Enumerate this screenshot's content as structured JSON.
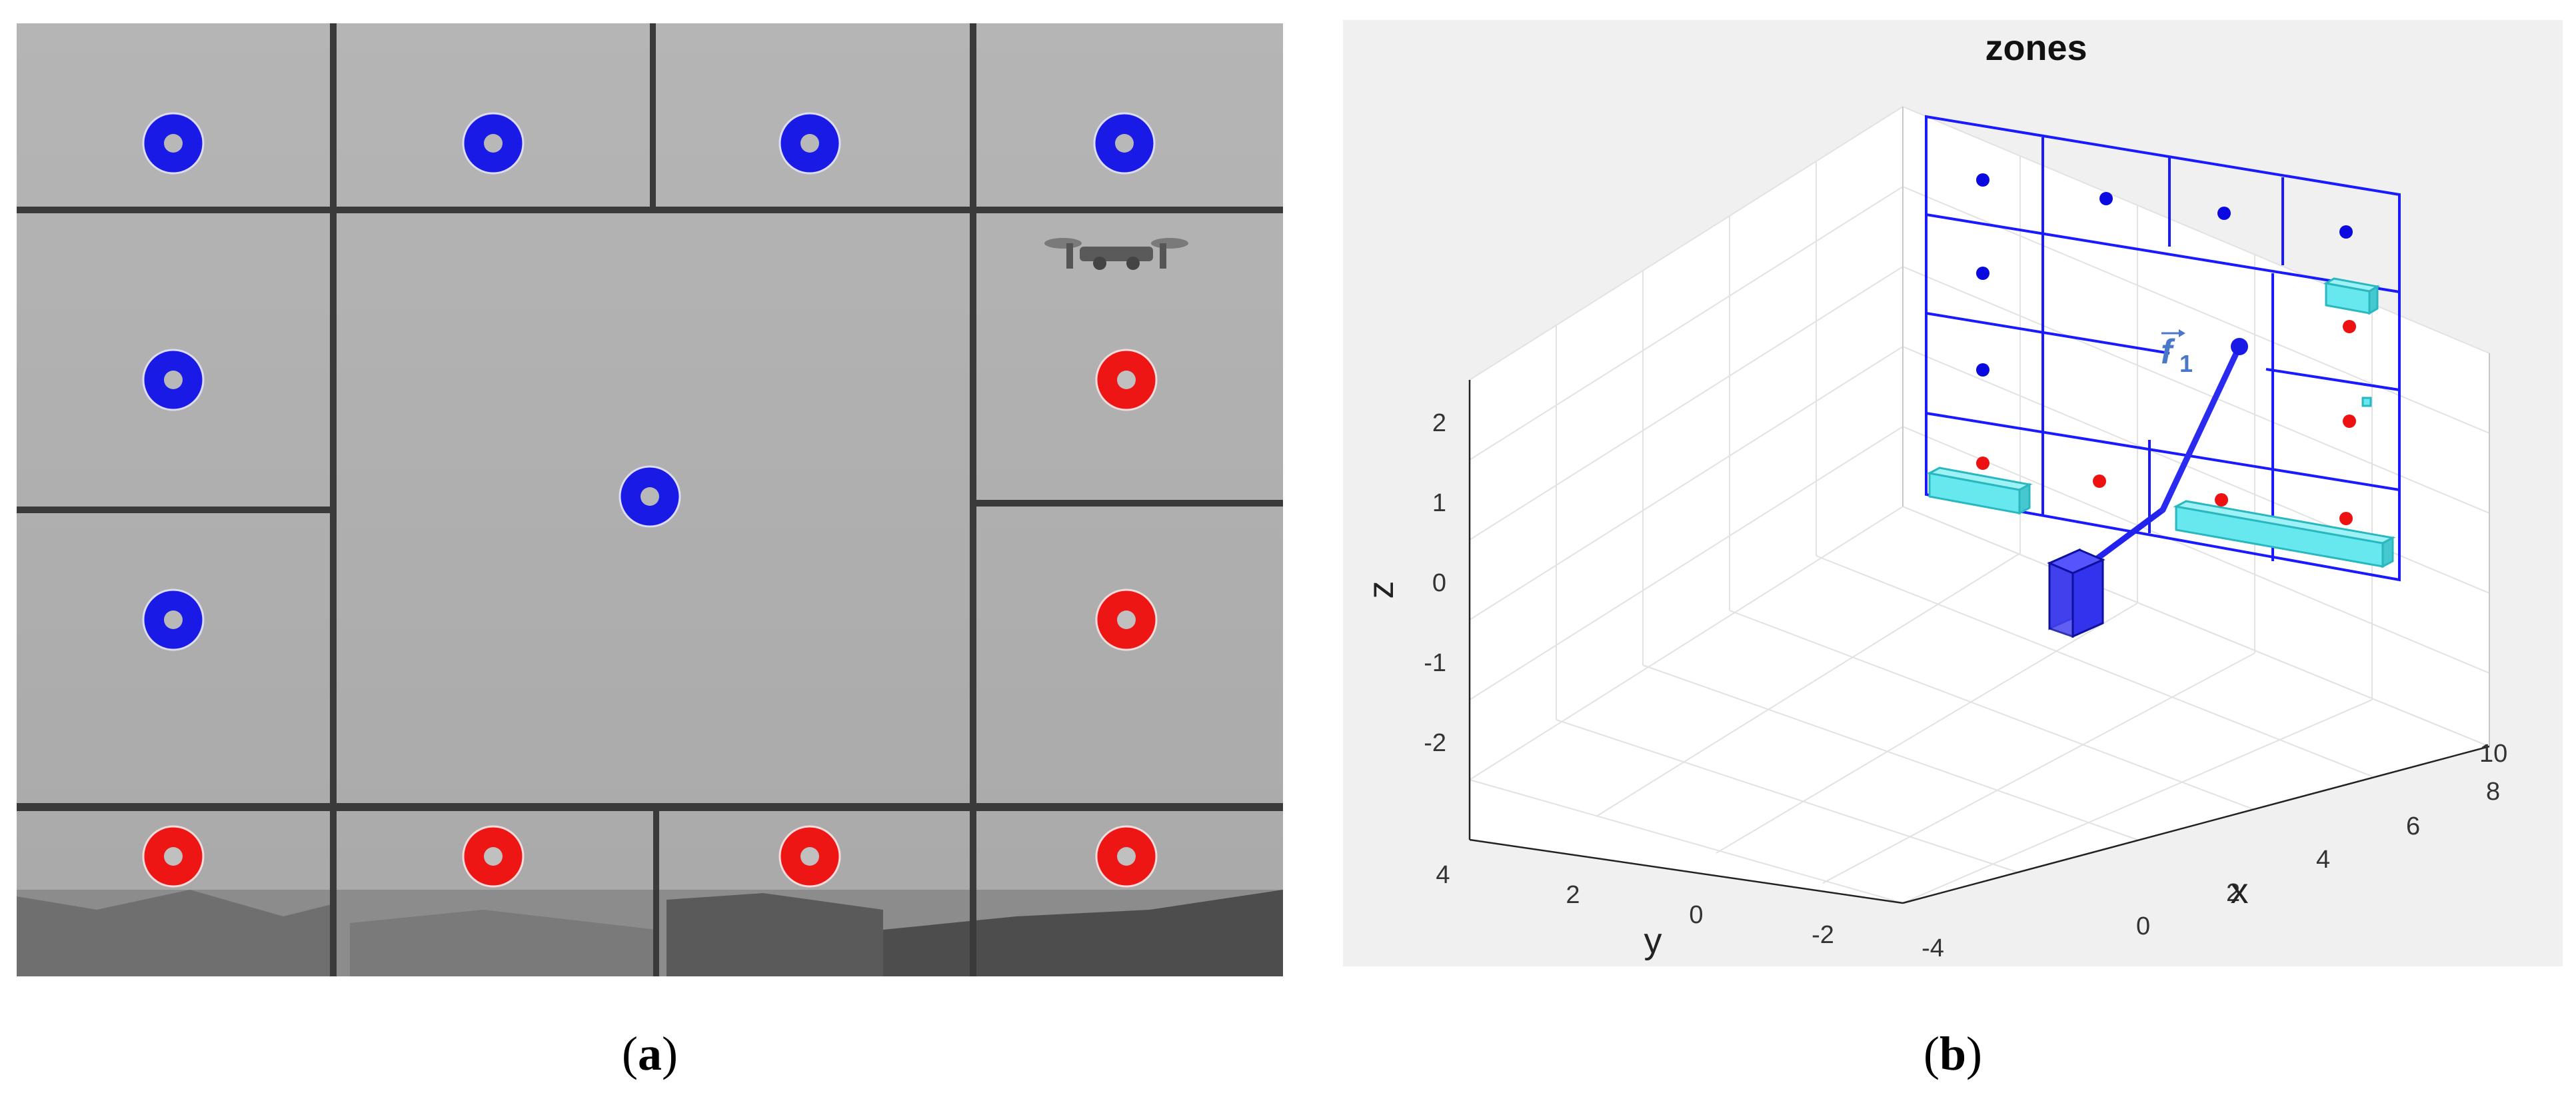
{
  "captions": {
    "a": "a",
    "b": "b"
  },
  "panel_a": {
    "colors": {
      "blue_target": "#1a1ae6",
      "red_target": "#ee1515",
      "panel_bg": "#b0b0b0",
      "divider": "#3a3a3a"
    }
  },
  "panel_b": {
    "title": "zones",
    "x_label": "x",
    "y_label": "y",
    "z_label": "z",
    "vector_label": "f",
    "vector_subscript": "1",
    "x_ticks": [
      "0",
      "2",
      "4",
      "6",
      "8",
      "10"
    ],
    "y_ticks": [
      "4",
      "2",
      "0",
      "-2",
      "-4"
    ],
    "z_ticks": [
      "2",
      "1",
      "0",
      "-1",
      "-2"
    ],
    "colors": {
      "grid_line": "#1a1aff",
      "blue_dot": "#0a0ae0",
      "red_dot": "#ee1111",
      "obstacle": "#66e8ee",
      "cube": "#3333ee"
    }
  }
}
